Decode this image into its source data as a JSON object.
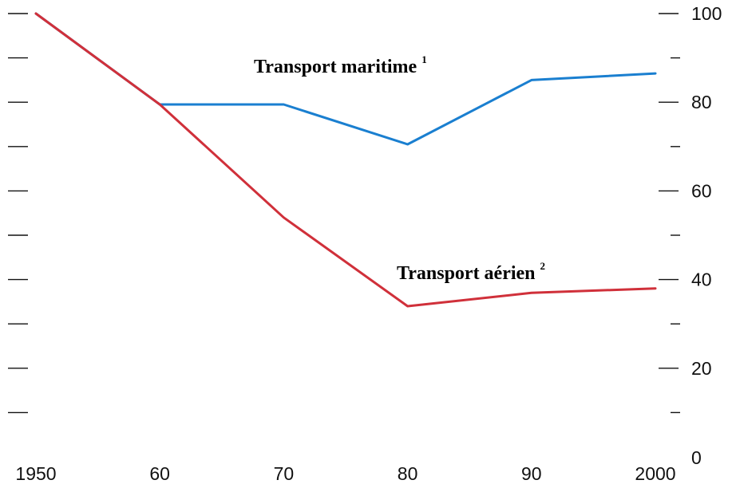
{
  "chart_data": {
    "type": "line",
    "x": [
      1950,
      1960,
      1970,
      1980,
      1990,
      2000
    ],
    "x_tick_labels": [
      "1950",
      "60",
      "70",
      "80",
      "90",
      "2000"
    ],
    "y_tick_labels": [
      "0",
      "20",
      "40",
      "60",
      "80",
      "100"
    ],
    "ylim": [
      0,
      100
    ],
    "xlim": [
      1950,
      2000
    ],
    "y_axis_position": "right",
    "grid": false,
    "series": [
      {
        "name": "Transport maritime",
        "footnote": "1",
        "color": "#1a7fd0",
        "values": [
          100,
          79.5,
          79.5,
          70.5,
          85,
          86.5
        ]
      },
      {
        "name": "Transport aérien",
        "footnote": "2",
        "color": "#d0303a",
        "values": [
          100,
          79.5,
          54,
          34,
          37,
          38
        ]
      }
    ]
  }
}
